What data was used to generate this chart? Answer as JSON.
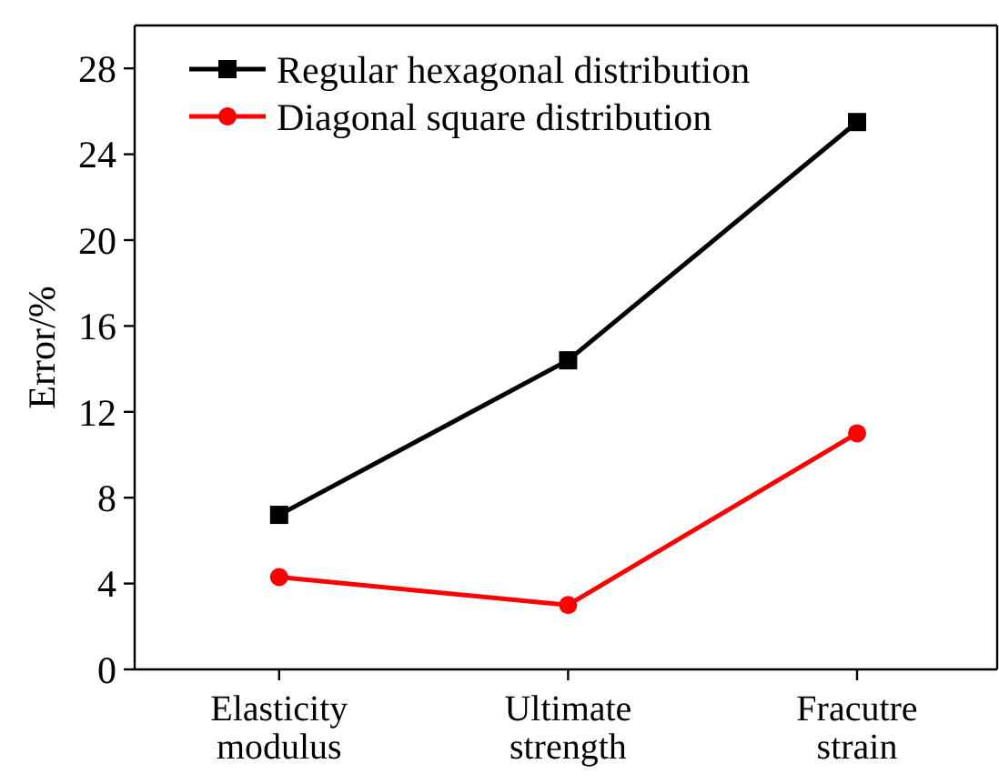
{
  "chart_data": {
    "type": "line",
    "ylabel": "Error/%",
    "categories": [
      "Elasticity\nmodulus",
      "Ultimate\nstrength",
      "Fracutre\nstrain"
    ],
    "series": [
      {
        "name": "Regular hexagonal distribution",
        "color": "#000000",
        "marker": "square",
        "values": [
          7.2,
          14.4,
          25.5
        ]
      },
      {
        "name": "Diagonal square distribution",
        "color": "#ff0000",
        "marker": "circle",
        "values": [
          4.3,
          3.0,
          11.0
        ]
      }
    ],
    "ylim": [
      0,
      30
    ],
    "yticks": [
      0,
      4,
      8,
      12,
      16,
      20,
      24,
      28
    ],
    "legend": "top left",
    "grid": false,
    "line_style": "solid"
  }
}
